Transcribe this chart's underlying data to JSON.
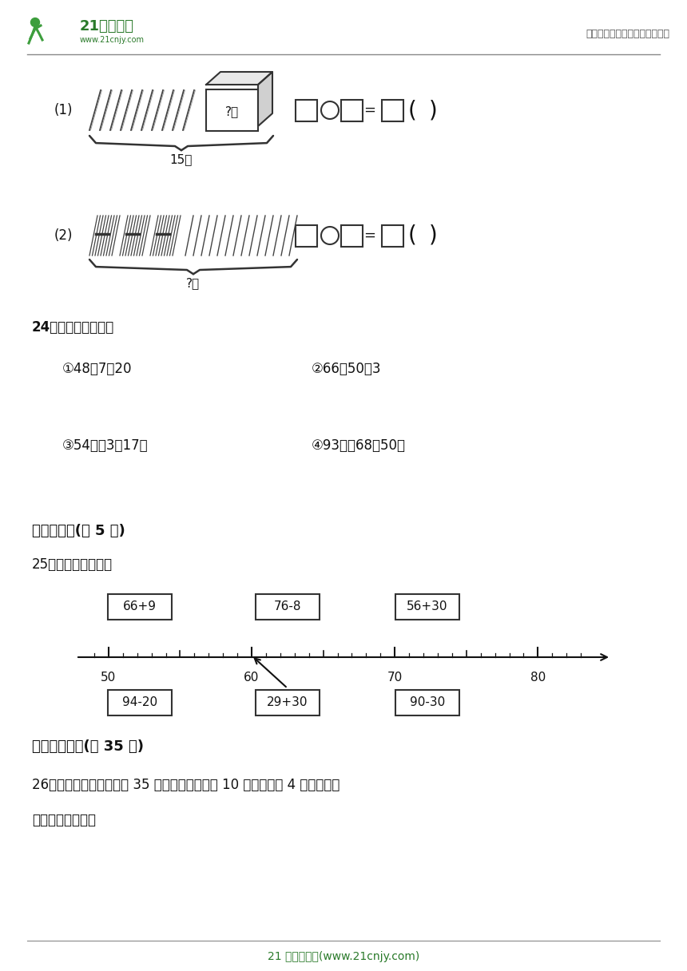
{
  "bg_color": "#ffffff",
  "logo_text": "21世纪教育",
  "logo_url": "www.21cnjy.com",
  "header_right": "中小学教育资源及组卷应用平台",
  "section5_title": "五、连线题(共 5 分)",
  "section6_title": "六、解决问题(共 35 分)",
  "q25_label": "25．照样子连一连。",
  "q24_label": "24．计算下面各题。",
  "q26_label": "26．一辆公共汽车上有原 35 人，到站后下去了 10 人，又上来 4 人，公共汽",
  "q26_label2": "车上现有多少人？",
  "footer_text": "21 世纪教育网(www.21cnjy.com)",
  "upper_boxes": [
    "66+9",
    "76-8",
    "56+30"
  ],
  "lower_boxes": [
    "94-20",
    "29+30",
    "90-30"
  ],
  "calc_q1": "①48＋7＋20",
  "calc_q2": "②66－50－3",
  "calc_q3": "③54＋（3＋17）",
  "calc_q4": "④93－（68－50）",
  "label_15zhi": "15支",
  "label_qgen": "?根",
  "label_qzhi": "?支",
  "q1_label": "(1)",
  "q2_label": "(2)"
}
